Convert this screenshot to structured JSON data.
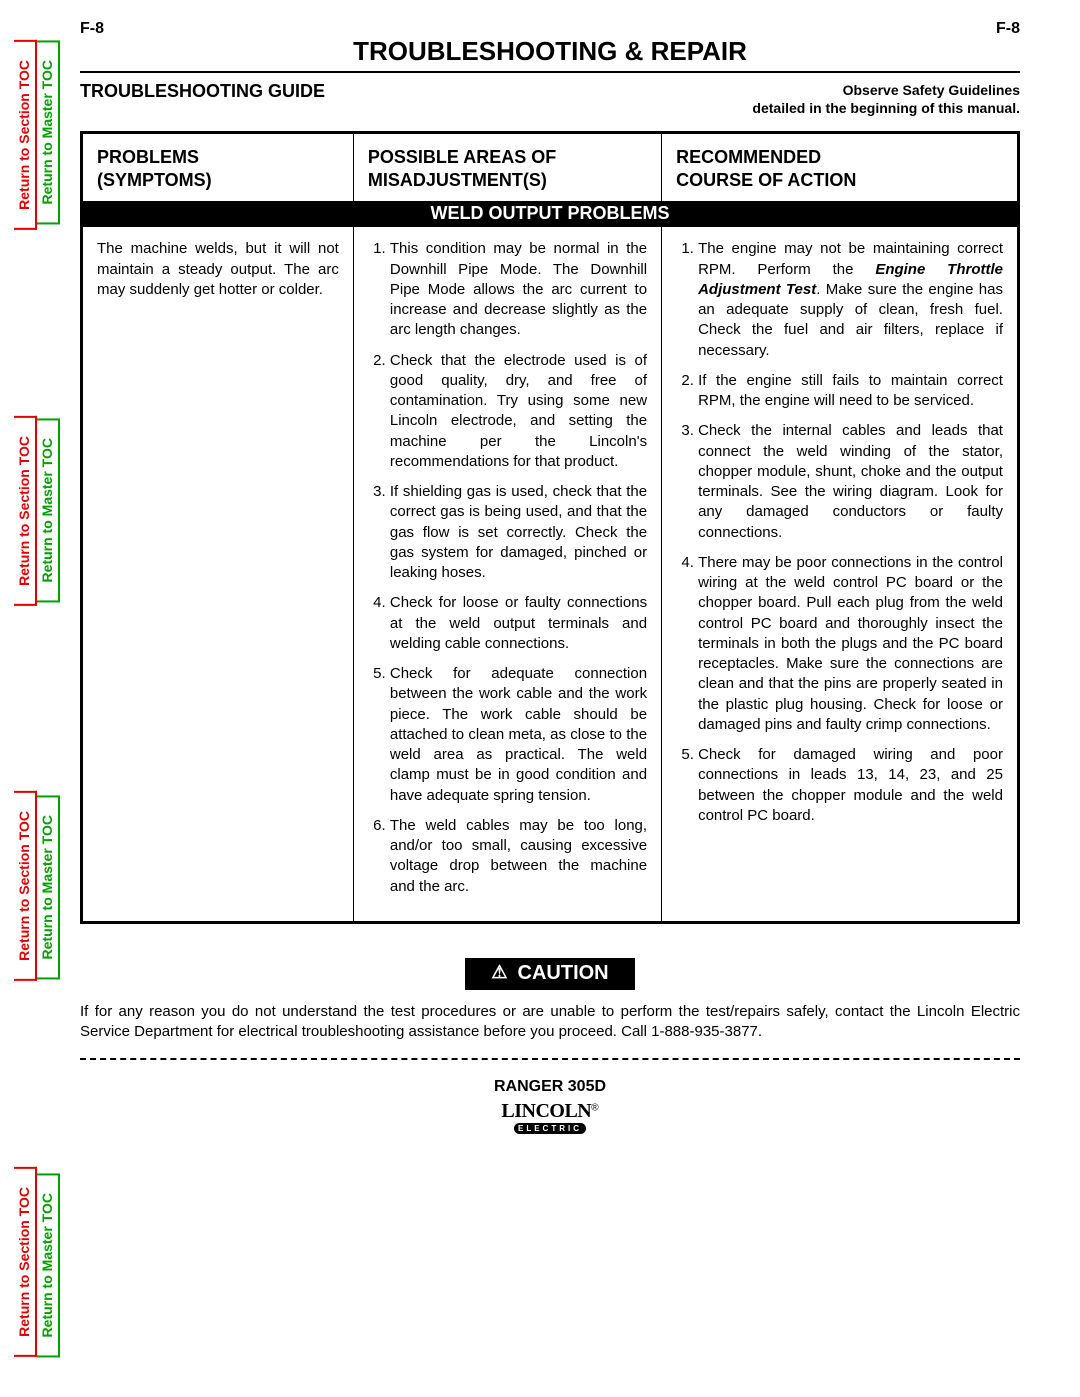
{
  "page_code": "F-8",
  "main_title": "TROUBLESHOOTING & REPAIR",
  "guide_title": "TROUBLESHOOTING GUIDE",
  "safety_note_line1": "Observe Safety Guidelines",
  "safety_note_line2": "detailed in the beginning of this manual.",
  "side_tabs": {
    "section_label": "Return to Section TOC",
    "master_label": "Return to Master TOC",
    "section_color": "#e30000",
    "master_color": "#00a000",
    "repeat_count": 4
  },
  "table": {
    "headers": {
      "col1_line1": "PROBLEMS",
      "col1_line2": "(SYMPTOMS)",
      "col2_line1": "POSSIBLE AREAS OF",
      "col2_line2": "MISADJUSTMENT(S)",
      "col3_line1": "RECOMMENDED",
      "col3_line2": "COURSE OF ACTION"
    },
    "section_band": "WELD OUTPUT PROBLEMS",
    "symptom": "The machine welds, but it will not maintain a steady output.  The arc may suddenly get hotter or colder.",
    "misadjustments": [
      "This condition may be normal in the Downhill Pipe Mode.  The Downhill Pipe Mode allows the arc current to increase and decrease slightly as the arc length changes.",
      "Check that the electrode used is of good quality, dry, and free of contamination.  Try using some new Lincoln electrode, and setting the machine per the Lincoln's recommendations for that product.",
      "If shielding gas is used, check that the correct gas is being used, and that the gas flow is set correctly.  Check the gas system for damaged, pinched or leaking hoses.",
      "Check for loose or faulty connections at the weld output terminals and welding cable connections.",
      "Check for adequate connection between the work cable and the work piece.  The work cable should be attached to clean meta, as close to the weld area as practical.  The weld clamp must be in good condition and have adequate spring tension.",
      "The weld cables may be too long, and/or too small, causing excessive voltage drop between the machine and the arc."
    ],
    "actions_prefix_1": "The engine may not be maintaining correct RPM.  Perform the ",
    "actions_ital_1": "Engine Throttle Adjustment Test",
    "actions_suffix_1": ".  Make sure the engine has an adequate supply of clean, fresh fuel. Check the fuel and air filters, replace if necessary.",
    "actions_rest": [
      "If the engine still fails to maintain correct RPM, the engine will need to be serviced.",
      "Check the internal cables and leads that connect the weld winding of the stator, chopper module, shunt, choke and the output terminals.  See the wiring diagram.  Look for any damaged conductors or faulty connections.",
      "There may be poor connections in the control wiring at the weld control PC board or the chopper board.  Pull each plug from the weld control PC board and thoroughly insect the terminals in both the plugs and the PC board receptacles.  Make sure the connections are clean and that the pins are properly seated in the plastic plug housing. Check for loose or damaged pins and faulty crimp connections.",
      "Check for damaged wiring and poor connections in leads 13, 14, 23, and 25 between the chopper module and the weld control PC board."
    ]
  },
  "caution_label": "CAUTION",
  "caution_text": "If for any reason you do not understand the test procedures or are unable to perform the test/repairs safely, contact the Lincoln Electric Service Department for electrical troubleshooting assistance before you proceed.  Call 1-888-935-3877.",
  "product_name": "RANGER 305D",
  "brand_top": "LINCOLN",
  "brand_bottom": "ELECTRIC"
}
